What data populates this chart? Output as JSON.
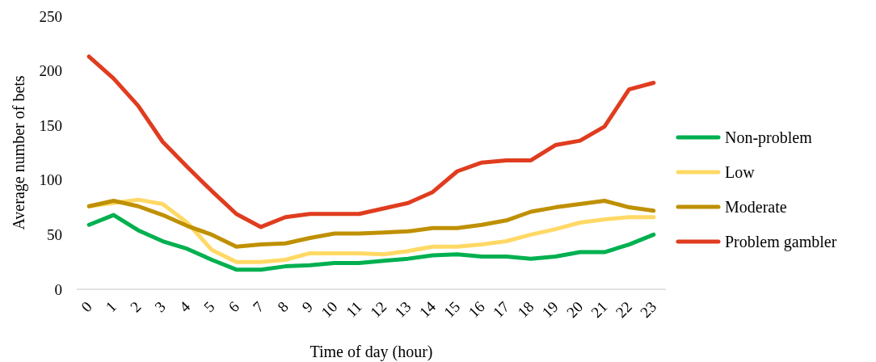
{
  "chart_data": {
    "type": "line",
    "xlabel": "Time of day (hour)",
    "ylabel": "Average number of bets",
    "x": [
      0,
      1,
      2,
      3,
      4,
      5,
      6,
      7,
      8,
      9,
      10,
      11,
      12,
      13,
      14,
      15,
      16,
      17,
      18,
      19,
      20,
      21,
      22,
      23
    ],
    "xlim": [
      -0.5,
      23.5
    ],
    "xticks": [
      0,
      1,
      2,
      3,
      4,
      5,
      6,
      7,
      8,
      9,
      10,
      11,
      12,
      13,
      14,
      15,
      16,
      17,
      18,
      19,
      20,
      21,
      22,
      23
    ],
    "ylim": [
      0,
      250
    ],
    "yticks": [
      0,
      50,
      100,
      150,
      200,
      250
    ],
    "grid": false,
    "legend": "right",
    "marker": "none",
    "line_style": "solid",
    "series": [
      {
        "name": "Non-problem",
        "color": "#00b050",
        "values": [
          59,
          68,
          54,
          44,
          37,
          27,
          18,
          18,
          21,
          22,
          24,
          24,
          26,
          28,
          31,
          32,
          30,
          30,
          28,
          30,
          34,
          34,
          41,
          50
        ]
      },
      {
        "name": "Low",
        "color": "#ffd966",
        "values": [
          76,
          79,
          82,
          78,
          61,
          36,
          25,
          25,
          27,
          33,
          33,
          33,
          32,
          35,
          39,
          39,
          41,
          44,
          50,
          55,
          61,
          64,
          66,
          66
        ]
      },
      {
        "name": "Moderate",
        "color": "#bf9000",
        "values": [
          76,
          81,
          76,
          68,
          58,
          50,
          39,
          41,
          42,
          47,
          51,
          51,
          52,
          53,
          56,
          56,
          59,
          63,
          71,
          75,
          78,
          81,
          75,
          72
        ]
      },
      {
        "name": "Problem gambler",
        "color": "#e03c1f",
        "values": [
          213,
          193,
          168,
          135,
          112,
          90,
          69,
          57,
          66,
          69,
          69,
          69,
          74,
          79,
          89,
          108,
          116,
          118,
          118,
          132,
          136,
          149,
          183,
          189
        ]
      }
    ]
  }
}
